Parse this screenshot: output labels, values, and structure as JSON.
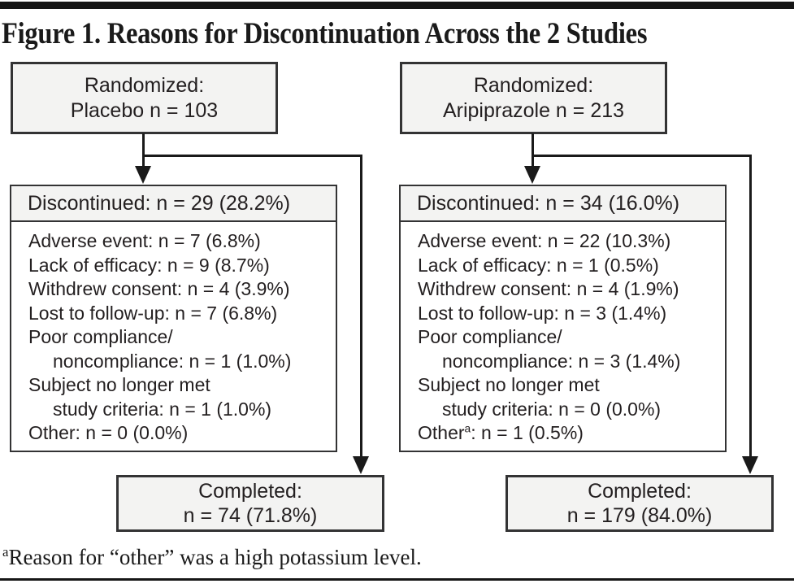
{
  "figure": {
    "title": "Figure 1. Reasons for Discontinuation Across the 2 Studies",
    "footnote": {
      "marker": "a",
      "text": "Reason for “other” was a high potassium level."
    }
  },
  "colors": {
    "box_fill": "#f3f3f2",
    "box_border": "#333334",
    "connector_line": "#1a1a1a",
    "text": "#231f20"
  },
  "columns": [
    {
      "id": "placebo",
      "randomized": {
        "line1": "Randomized:",
        "line2": "Placebo n = 103"
      },
      "discontinued": {
        "header": "Discontinued: n = 29 (28.2%)",
        "reasons": [
          {
            "text": "Adverse event: n = 7 (6.8%)"
          },
          {
            "text": "Lack of efficacy: n = 9 (8.7%)"
          },
          {
            "text": "Withdrew consent: n = 4 (3.9%)"
          },
          {
            "text": "Lost to follow-up: n = 7 (6.8%)"
          },
          {
            "text": "Poor compliance/"
          },
          {
            "text": "noncompliance: n = 1 (1.0%)",
            "indent": true
          },
          {
            "text": "Subject no longer met"
          },
          {
            "text": "study criteria: n = 1 (1.0%)",
            "indent": true
          },
          {
            "text": "Other: n = 0 (0.0%)"
          }
        ]
      },
      "completed": {
        "line1": "Completed:",
        "line2": "n = 74 (71.8%)"
      }
    },
    {
      "id": "aripiprazole",
      "randomized": {
        "line1": "Randomized:",
        "line2": "Aripiprazole n = 213"
      },
      "discontinued": {
        "header": "Discontinued: n = 34 (16.0%)",
        "reasons": [
          {
            "text": "Adverse event: n = 22 (10.3%)"
          },
          {
            "text": "Lack of efficacy: n = 1 (0.5%)"
          },
          {
            "text": "Withdrew consent: n = 4 (1.9%)"
          },
          {
            "text": "Lost to follow-up: n = 3 (1.4%)"
          },
          {
            "text": "Poor compliance/"
          },
          {
            "text": "noncompliance: n = 3 (1.4%)",
            "indent": true
          },
          {
            "text": "Subject no longer met"
          },
          {
            "text": "study criteria: n = 0 (0.0%)",
            "indent": true
          },
          {
            "pre": "Other",
            "sup": "a",
            "post": ": n = 1 (0.5%)"
          }
        ]
      },
      "completed": {
        "line1": "Completed:",
        "line2": "n = 179 (84.0%)"
      }
    }
  ]
}
